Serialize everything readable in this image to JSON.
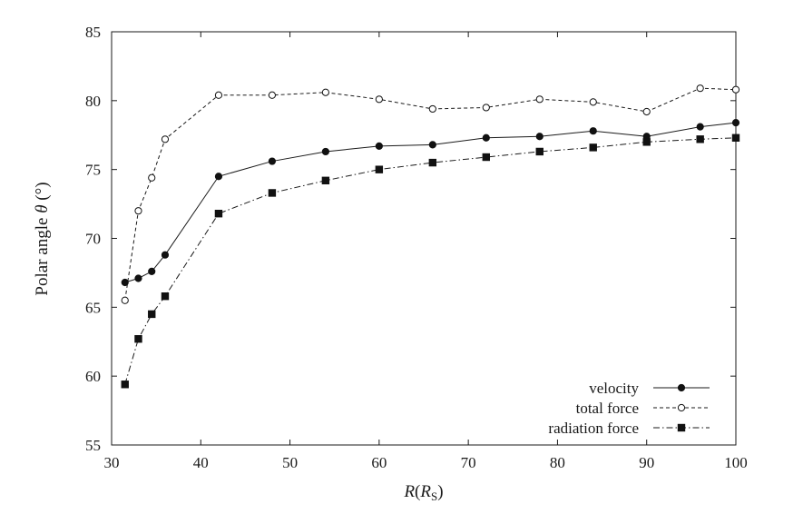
{
  "chart_data": {
    "type": "line",
    "title": "",
    "xlabel": "R(RS)",
    "xlabel_main": "R",
    "xlabel_paren_open": "(",
    "xlabel_unit": "R",
    "xlabel_unit_sub": "S",
    "xlabel_paren_close": ")",
    "ylabel": "Polar angle θ (°)",
    "ylabel_prefix": "Polar angle ",
    "ylabel_symbol": "θ",
    "ylabel_suffix": " (°)",
    "xlim": [
      30,
      100
    ],
    "ylim": [
      55,
      85
    ],
    "xticks": [
      30,
      40,
      50,
      60,
      70,
      80,
      90,
      100
    ],
    "yticks": [
      55,
      60,
      65,
      70,
      75,
      80,
      85
    ],
    "grid": false,
    "legend_position": "bottom-right",
    "series": [
      {
        "name": "velocity",
        "line_style": "solid",
        "marker": "filled-circle",
        "x": [
          31.5,
          33,
          34.5,
          36,
          42,
          48,
          54,
          60,
          66,
          72,
          78,
          84,
          90,
          96,
          100
        ],
        "y": [
          66.8,
          67.1,
          67.6,
          68.8,
          74.5,
          75.6,
          76.3,
          76.7,
          76.8,
          77.3,
          77.4,
          77.8,
          77.4,
          78.1,
          78.4
        ]
      },
      {
        "name": "total force",
        "line_style": "dashed",
        "marker": "open-circle",
        "x": [
          31.5,
          33,
          34.5,
          36,
          42,
          48,
          54,
          60,
          66,
          72,
          78,
          84,
          90,
          96,
          100
        ],
        "y": [
          65.5,
          72.0,
          74.4,
          77.2,
          80.4,
          80.4,
          80.6,
          80.1,
          79.4,
          79.5,
          80.1,
          79.9,
          79.2,
          80.9,
          80.8
        ]
      },
      {
        "name": "radiation force",
        "line_style": "dash-dot",
        "marker": "filled-square",
        "x": [
          31.5,
          33,
          34.5,
          36,
          42,
          48,
          54,
          60,
          66,
          72,
          78,
          84,
          90,
          96,
          100
        ],
        "y": [
          59.4,
          62.7,
          64.5,
          65.8,
          71.8,
          73.3,
          74.2,
          75.0,
          75.5,
          75.9,
          76.3,
          76.6,
          77.0,
          77.2,
          77.3
        ]
      }
    ]
  }
}
